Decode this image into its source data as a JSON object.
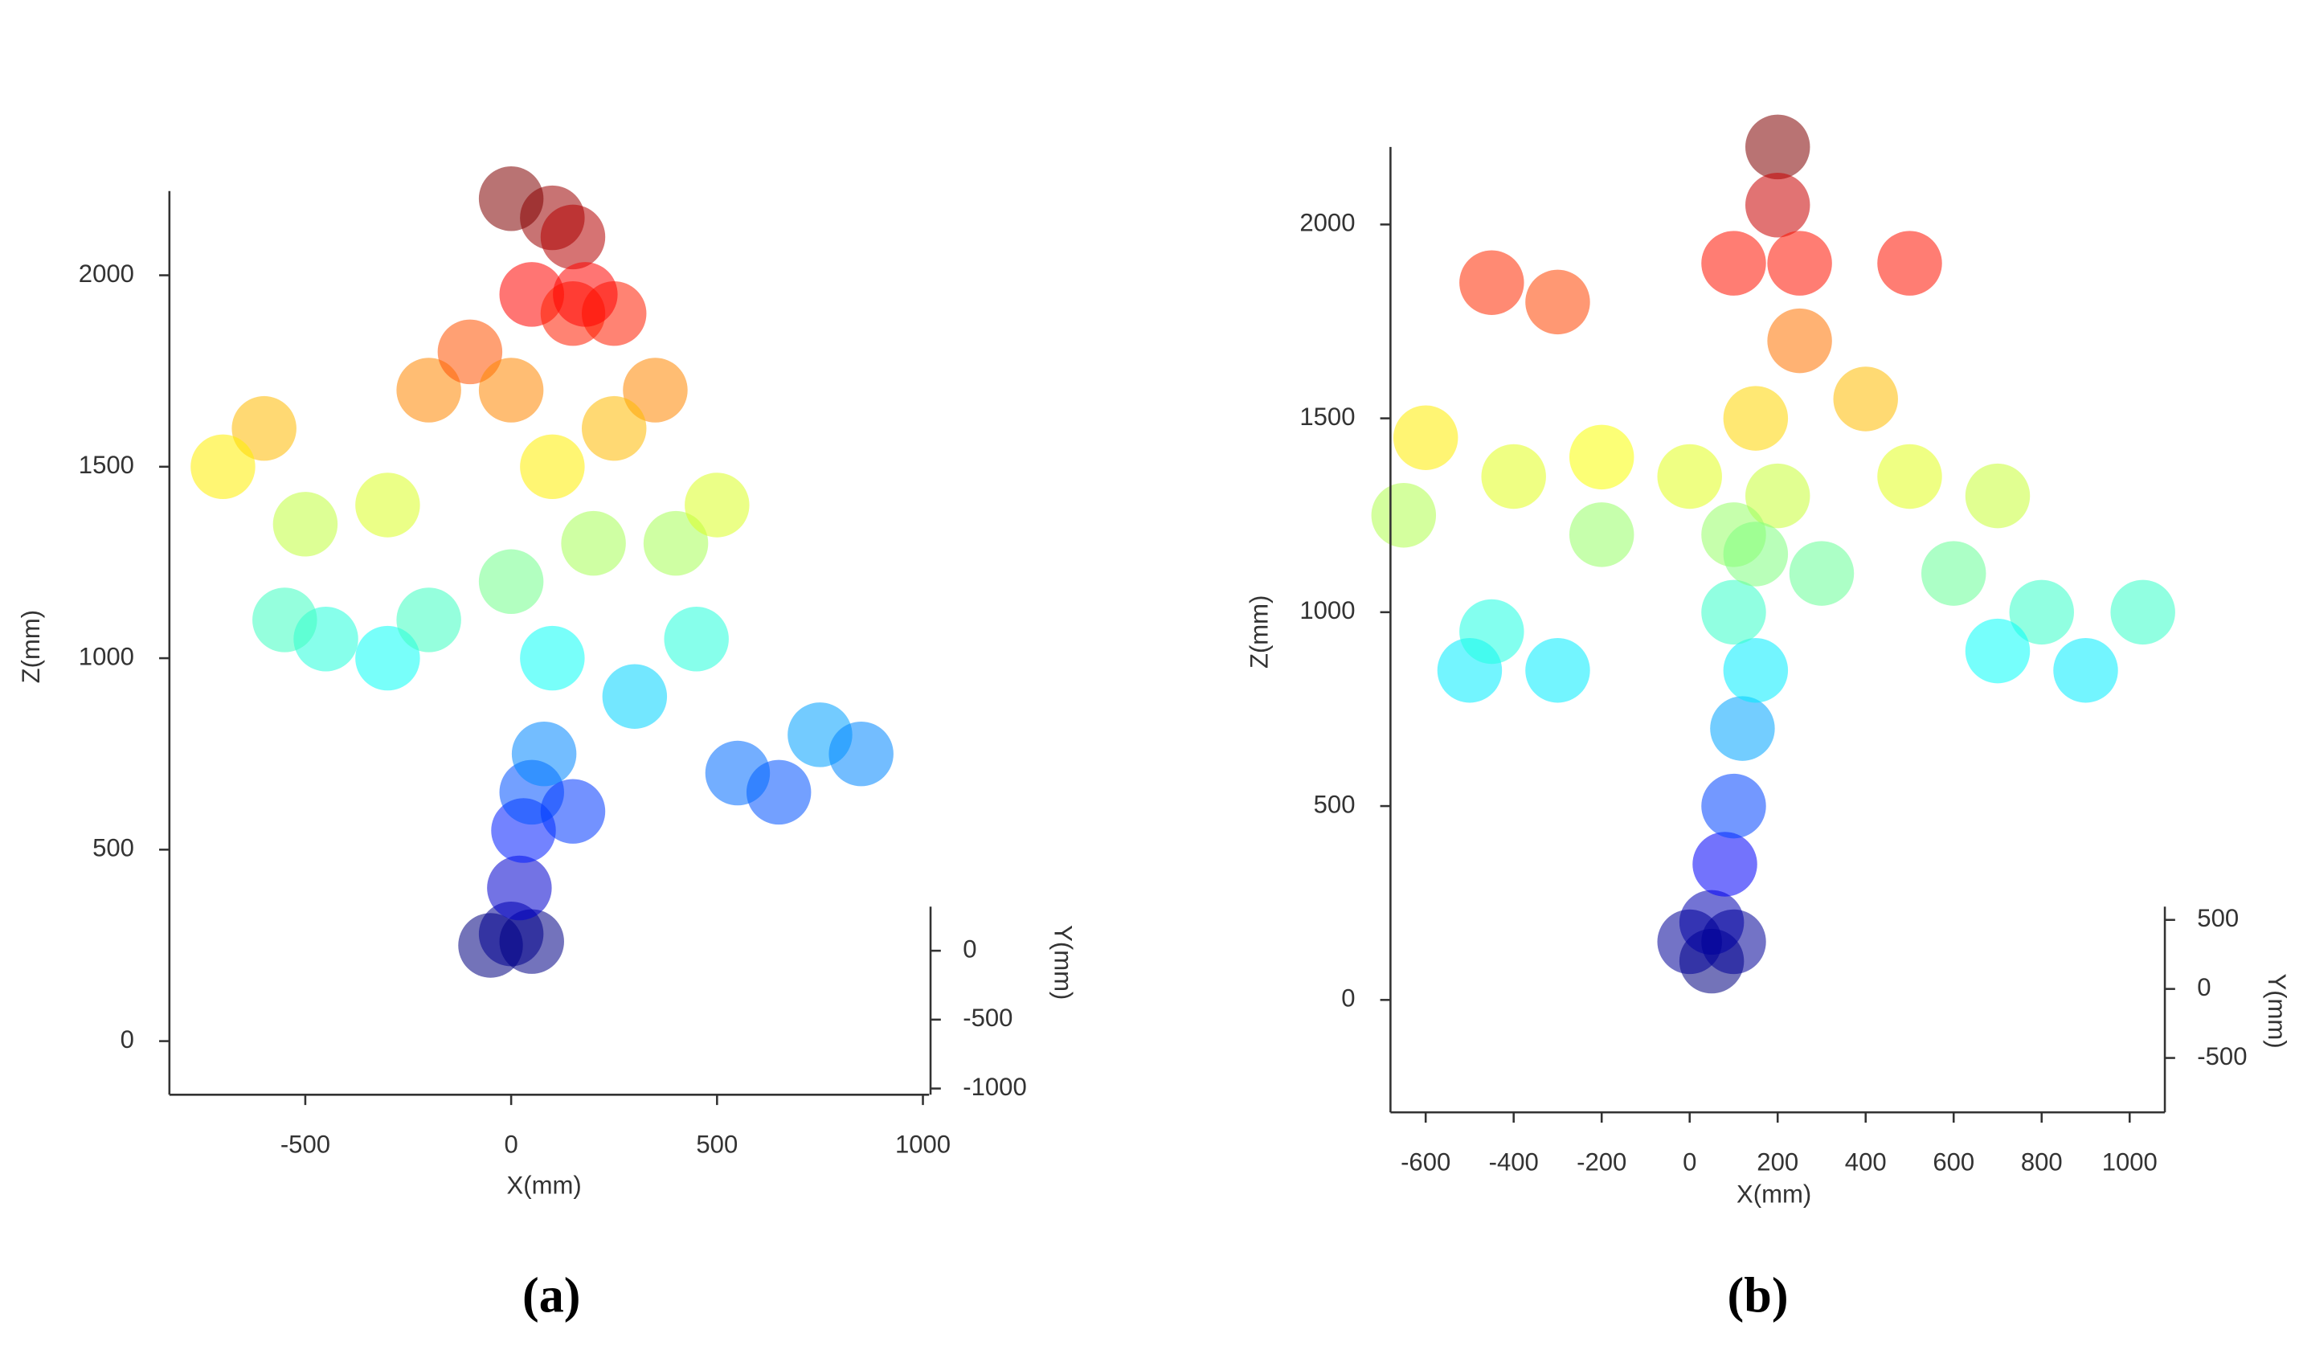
{
  "chart_data": [
    {
      "type": "scatter",
      "caption": "(a)",
      "xlabel": "X(mm)",
      "ylabel": "Z(mm)",
      "colormap": "jet",
      "x": [
        -50,
        0,
        50,
        20,
        30,
        50,
        80,
        150,
        100,
        0,
        150,
        50,
        150,
        750,
        650,
        850,
        550,
        450,
        -600,
        -700,
        -500,
        -300,
        -450,
        -300,
        -550,
        -200,
        0,
        200,
        100,
        300,
        400,
        -200,
        -100,
        250,
        350,
        500,
        250,
        100,
        0,
        180
      ],
      "values": [
        250,
        280,
        260,
        400,
        550,
        650,
        750,
        600,
        2150,
        2200,
        2100,
        1950,
        1900,
        800,
        650,
        750,
        700,
        1050,
        1600,
        1500,
        1350,
        1400,
        1050,
        1000,
        1100,
        1100,
        1200,
        1300,
        1000,
        900,
        1300,
        1700,
        1800,
        1900,
        1700,
        1400,
        1600,
        1500,
        1700,
        1950
      ],
      "xlim": [
        -830,
        1015
      ],
      "ylim": [
        -140,
        2220
      ],
      "xticks": [
        -500,
        0,
        500,
        1000
      ],
      "yticks": [
        0,
        500,
        1000,
        1500,
        2000
      ],
      "depth_axis": {
        "label": "Y(mm)",
        "lim": [
          -1045,
          320
        ],
        "ticks": [
          0,
          -500,
          -1000
        ]
      }
    },
    {
      "type": "scatter",
      "caption": "(b)",
      "xlabel": "X(mm)",
      "ylabel": "Z(mm)",
      "colormap": "jet",
      "x": [
        50,
        50,
        0,
        100,
        80,
        100,
        120,
        150,
        200,
        200,
        250,
        100,
        -300,
        -450,
        500,
        250,
        150,
        400,
        -600,
        -400,
        -200,
        0,
        200,
        500,
        700,
        -650,
        -200,
        100,
        300,
        600,
        800,
        -500,
        -300,
        -450,
        700,
        900,
        1030,
        100,
        150
      ],
      "values": [
        100,
        200,
        150,
        150,
        350,
        500,
        700,
        850,
        2200,
        2050,
        1900,
        1900,
        1800,
        1850,
        1900,
        1700,
        1500,
        1550,
        1450,
        1350,
        1400,
        1350,
        1300,
        1350,
        1300,
        1250,
        1200,
        1200,
        1100,
        1100,
        1000,
        850,
        850,
        950,
        900,
        850,
        1000,
        1000,
        1150
      ],
      "xlim": [
        -680,
        1080
      ],
      "ylim": [
        -290,
        2200
      ],
      "xticks": [
        -600,
        -400,
        -200,
        0,
        200,
        400,
        600,
        800,
        1000
      ],
      "yticks": [
        0,
        500,
        1000,
        1500,
        2000
      ],
      "depth_axis": {
        "label": "Y(mm)",
        "lim": [
          -894,
          596
        ],
        "ticks": [
          500,
          0,
          -500
        ]
      }
    }
  ]
}
